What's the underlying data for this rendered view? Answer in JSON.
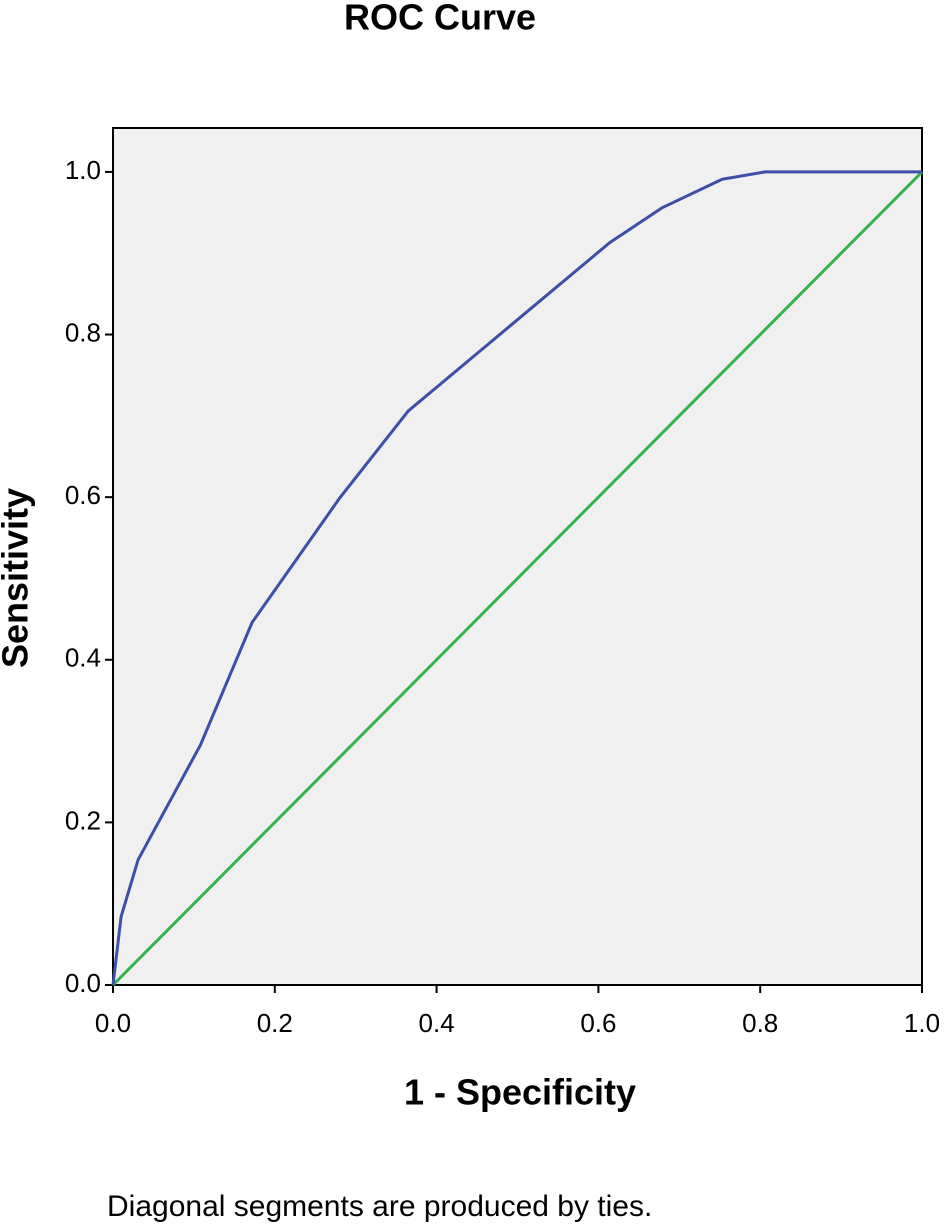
{
  "chart_data": {
    "type": "line",
    "title": "ROC Curve",
    "x_label": "1 - Specificity",
    "y_label": "Sensitivity",
    "footnote": "Diagonal segments are produced by ties.",
    "xlim": [
      0,
      1
    ],
    "ylim": [
      0,
      1.054
    ],
    "xticks": [
      {
        "value": 0,
        "label": "0.0"
      },
      {
        "value": 0.2,
        "label": "0.2"
      },
      {
        "value": 0.4,
        "label": "0.4"
      },
      {
        "value": 0.6,
        "label": "0.6"
      },
      {
        "value": 0.8,
        "label": "0.8"
      },
      {
        "value": 1,
        "label": "1.0"
      }
    ],
    "yticks": [
      {
        "value": 0,
        "label": "0.0"
      },
      {
        "value": 0.2,
        "label": "0.2"
      },
      {
        "value": 0.4,
        "label": "0.4"
      },
      {
        "value": 0.6,
        "label": "0.6"
      },
      {
        "value": 0.8,
        "label": "0.8"
      },
      {
        "value": 1,
        "label": "1.0"
      }
    ],
    "background": "#f0f0f0",
    "series": [
      {
        "color": "#3d4fa8",
        "x": [
          0,
          0.01,
          0.031,
          0.108,
          0.172,
          0.281,
          0.365,
          0.614,
          0.679,
          0.753,
          0.806,
          1
        ],
        "values": [
          0,
          0.084,
          0.154,
          0.295,
          0.446,
          0.6,
          0.706,
          0.913,
          0.956,
          0.991,
          1,
          1
        ]
      },
      {
        "color": "#33b44a",
        "x": [
          0,
          1
        ],
        "values": [
          0,
          1
        ]
      }
    ]
  }
}
